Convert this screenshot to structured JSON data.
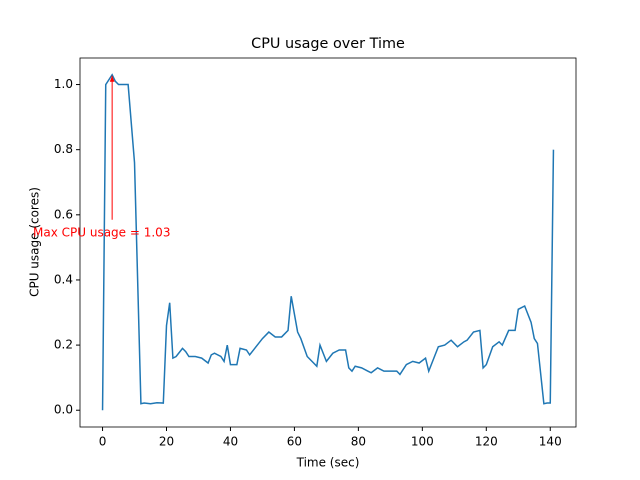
{
  "chart_data": {
    "type": "line",
    "title": "CPU usage over Time",
    "xlabel": "Time (sec)",
    "ylabel": "CPU usage (cores)",
    "color": "#1f77b4",
    "x": [
      0,
      1,
      3,
      4,
      5,
      6,
      8,
      10,
      12,
      13,
      15,
      17,
      19,
      20,
      21,
      22,
      23,
      25,
      26,
      27,
      29,
      31,
      33,
      34,
      35,
      37,
      38,
      39,
      40,
      42,
      43,
      45,
      46,
      48,
      50,
      52,
      54,
      56,
      58,
      59,
      61,
      62,
      64,
      66,
      67,
      68,
      70,
      72,
      74,
      76,
      77,
      78,
      79,
      81,
      83,
      84,
      86,
      88,
      90,
      92,
      93,
      95,
      97,
      99,
      101,
      102,
      104,
      105,
      107,
      109,
      111,
      113,
      114,
      116,
      118,
      119,
      120,
      122,
      124,
      125,
      127,
      129,
      130,
      132,
      134,
      135,
      136,
      138,
      139,
      140,
      141
    ],
    "values": [
      0,
      1.0,
      1.03,
      1.01,
      1.0,
      1.0,
      1.0,
      0.76,
      0.02,
      0.022,
      0.02,
      0.023,
      0.022,
      0.26,
      0.33,
      0.16,
      0.165,
      0.19,
      0.18,
      0.165,
      0.165,
      0.16,
      0.145,
      0.17,
      0.175,
      0.165,
      0.15,
      0.2,
      0.14,
      0.14,
      0.19,
      0.185,
      0.17,
      0.195,
      0.22,
      0.24,
      0.225,
      0.225,
      0.245,
      0.35,
      0.24,
      0.22,
      0.165,
      0.145,
      0.135,
      0.2,
      0.15,
      0.175,
      0.185,
      0.185,
      0.13,
      0.12,
      0.135,
      0.13,
      0.12,
      0.115,
      0.13,
      0.12,
      0.12,
      0.12,
      0.11,
      0.14,
      0.15,
      0.145,
      0.16,
      0.12,
      0.17,
      0.195,
      0.2,
      0.215,
      0.195,
      0.21,
      0.215,
      0.24,
      0.245,
      0.13,
      0.14,
      0.195,
      0.21,
      0.2,
      0.245,
      0.245,
      0.31,
      0.32,
      0.27,
      0.22,
      0.205,
      0.02,
      0.022,
      0.022,
      0.8
    ],
    "xlim": [
      -7.05,
      148.05
    ],
    "xticks": [
      0,
      20,
      40,
      60,
      80,
      100,
      120,
      140
    ],
    "ylim": [
      -0.0515,
      1.0815
    ],
    "yticks": [
      {
        "value": 0,
        "label": "0.0"
      },
      {
        "value": 0.2,
        "label": "0.2"
      },
      {
        "value": 0.4,
        "label": "0.4"
      },
      {
        "value": 0.6,
        "label": "0.6"
      },
      {
        "value": 0.8,
        "label": "0.8"
      },
      {
        "value": 1.0,
        "label": "1.0"
      }
    ],
    "annotations": [
      {
        "text": "Max CPU usage = 1.03",
        "xy": [
          3,
          1.03
        ],
        "color": "red"
      }
    ]
  }
}
